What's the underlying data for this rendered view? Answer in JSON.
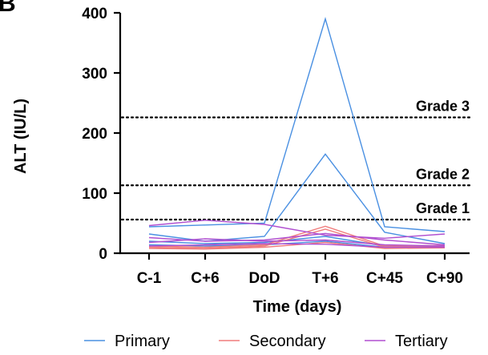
{
  "panel_label": "B",
  "chart_data": {
    "type": "line",
    "xlabel": "Time (days)",
    "ylabel": "ALT (IU/L)",
    "categories": [
      "C-1",
      "C+6",
      "DoD",
      "T+6",
      "C+45",
      "C+90"
    ],
    "ylim": [
      0,
      400
    ],
    "yticks": [
      0,
      100,
      200,
      300,
      400
    ],
    "thresholds": [
      {
        "label": "Grade 3",
        "value": 226
      },
      {
        "label": "Grade 2",
        "value": 113
      },
      {
        "label": "Grade 1",
        "value": 56
      }
    ],
    "groups": [
      {
        "name": "Primary",
        "color": "#4a90e2"
      },
      {
        "name": "Secondary",
        "color": "#f07c7c"
      },
      {
        "name": "Tertiary",
        "color": "#b04fd0"
      }
    ],
    "series": [
      {
        "group": "Primary",
        "values": [
          44,
          47,
          50,
          390,
          44,
          36
        ]
      },
      {
        "group": "Primary",
        "values": [
          32,
          20,
          28,
          165,
          35,
          16
        ]
      },
      {
        "group": "Primary",
        "values": [
          20,
          16,
          18,
          28,
          12,
          12
        ]
      },
      {
        "group": "Primary",
        "values": [
          14,
          12,
          14,
          20,
          10,
          10
        ]
      },
      {
        "group": "Secondary",
        "values": [
          12,
          10,
          14,
          45,
          12,
          13
        ]
      },
      {
        "group": "Secondary",
        "values": [
          10,
          8,
          12,
          40,
          10,
          11
        ]
      },
      {
        "group": "Secondary",
        "values": [
          8,
          7,
          10,
          18,
          8,
          9
        ]
      },
      {
        "group": "Tertiary",
        "values": [
          46,
          55,
          48,
          30,
          25,
          32
        ]
      },
      {
        "group": "Tertiary",
        "values": [
          26,
          20,
          22,
          33,
          22,
          14
        ]
      },
      {
        "group": "Tertiary",
        "values": [
          18,
          24,
          20,
          22,
          14,
          12
        ]
      },
      {
        "group": "Tertiary",
        "values": [
          12,
          14,
          16,
          15,
          10,
          10
        ]
      }
    ]
  }
}
